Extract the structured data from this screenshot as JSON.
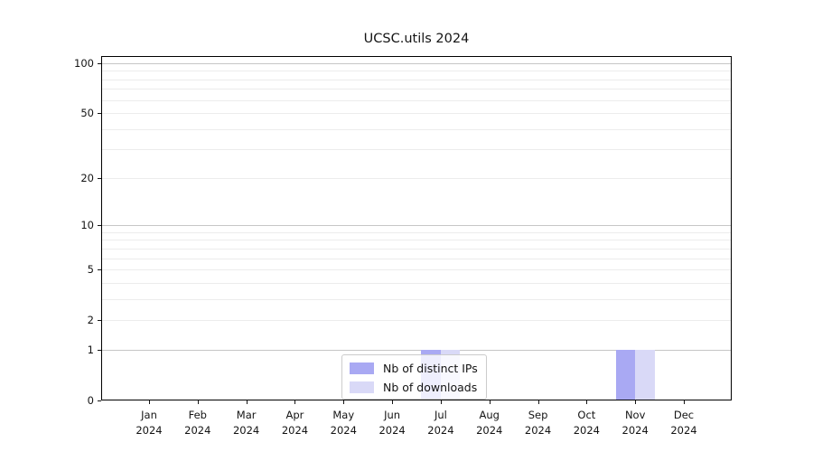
{
  "title": "UCSC.utils 2024",
  "colors": {
    "distinct_ips": "#a9a9f3",
    "downloads": "#d9d9f7",
    "grid_major": "#c6c6c6",
    "grid_minor": "#ececec",
    "axis": "#000000",
    "legend_border": "#cccccc"
  },
  "legend": {
    "items": [
      {
        "label": "Nb of distinct IPs",
        "color_key": "distinct_ips"
      },
      {
        "label": "Nb of downloads",
        "color_key": "downloads"
      }
    ]
  },
  "chart_data": {
    "type": "bar",
    "title": "UCSC.utils 2024",
    "categories": [
      "Jan 2024",
      "Feb 2024",
      "Mar 2024",
      "Apr 2024",
      "May 2024",
      "Jun 2024",
      "Jul 2024",
      "Aug 2024",
      "Sep 2024",
      "Oct 2024",
      "Nov 2024",
      "Dec 2024"
    ],
    "series": [
      {
        "name": "Nb of distinct IPs",
        "values": [
          0,
          0,
          0,
          0,
          0,
          0,
          1,
          0,
          0,
          0,
          1,
          0
        ]
      },
      {
        "name": "Nb of downloads",
        "values": [
          0,
          0,
          0,
          0,
          0,
          0,
          1,
          0,
          0,
          0,
          1,
          0
        ]
      }
    ],
    "xlabel": "",
    "ylabel": "",
    "y_scale": "log1p",
    "y_ticks": [
      0,
      1,
      2,
      5,
      10,
      20,
      50,
      100
    ],
    "ylim": [
      0,
      111
    ],
    "grid": true,
    "legend_position": "lower center"
  }
}
